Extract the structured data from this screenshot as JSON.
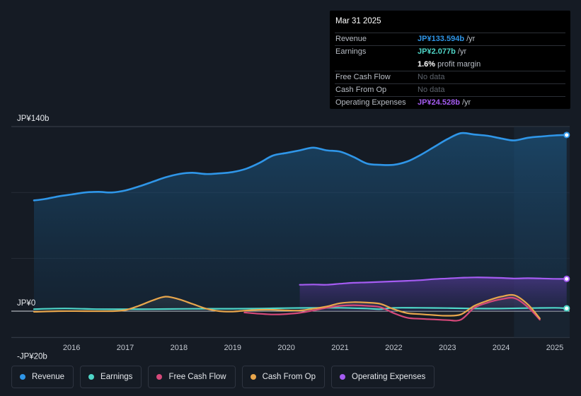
{
  "tooltip": {
    "date": "Mar 31 2025",
    "revenue_label": "Revenue",
    "revenue_value": "JP¥133.594b",
    "revenue_unit": "/yr",
    "earnings_label": "Earnings",
    "earnings_value": "JP¥2.077b",
    "earnings_unit": "/yr",
    "margin_value": "1.6%",
    "margin_label": "profit margin",
    "fcf_label": "Free Cash Flow",
    "fcf_value": "No data",
    "cfo_label": "Cash From Op",
    "cfo_value": "No data",
    "opex_label": "Operating Expenses",
    "opex_value": "JP¥24.528b",
    "opex_unit": "/yr",
    "colors": {
      "revenue": "#2f96e8",
      "earnings": "#4fd6c8",
      "opex": "#a55cf2"
    }
  },
  "legend": [
    {
      "label": "Revenue",
      "color": "#2f96e8"
    },
    {
      "label": "Earnings",
      "color": "#4fd6c8"
    },
    {
      "label": "Free Cash Flow",
      "color": "#d6497a"
    },
    {
      "label": "Cash From Op",
      "color": "#e8a64c"
    },
    {
      "label": "Operating Expenses",
      "color": "#a55cf2"
    }
  ],
  "chart_data": {
    "type": "area",
    "title": "",
    "xlabel": "",
    "ylabel": "",
    "y_tick_labels": [
      "JP¥140b",
      "JP¥0",
      "-JP¥20b"
    ],
    "y_ticks": [
      140,
      0,
      -20
    ],
    "ylim": [
      -20,
      140
    ],
    "xlim": [
      2015.3,
      2025.25
    ],
    "x_tick_labels": [
      "2016",
      "2017",
      "2018",
      "2019",
      "2020",
      "2021",
      "2022",
      "2023",
      "2024",
      "2025"
    ],
    "x_ticks": [
      2016,
      2017,
      2018,
      2019,
      2020,
      2021,
      2022,
      2023,
      2024,
      2025
    ],
    "forecast_start": 2024.24,
    "series": [
      {
        "name": "Revenue",
        "color": "#2f96e8",
        "points": [
          [
            2015.3,
            84
          ],
          [
            2015.5,
            85
          ],
          [
            2015.75,
            87
          ],
          [
            2016.0,
            88.5
          ],
          [
            2016.25,
            90
          ],
          [
            2016.5,
            90.5
          ],
          [
            2016.75,
            90
          ],
          [
            2017.0,
            91.5
          ],
          [
            2017.25,
            94.5
          ],
          [
            2017.5,
            98
          ],
          [
            2017.75,
            101.5
          ],
          [
            2018.0,
            104
          ],
          [
            2018.25,
            105
          ],
          [
            2018.5,
            104
          ],
          [
            2018.75,
            104.5
          ],
          [
            2019.0,
            105.5
          ],
          [
            2019.25,
            108
          ],
          [
            2019.5,
            112.5
          ],
          [
            2019.75,
            118
          ],
          [
            2020.0,
            120
          ],
          [
            2020.25,
            122
          ],
          [
            2020.5,
            124
          ],
          [
            2020.75,
            122
          ],
          [
            2021.0,
            121
          ],
          [
            2021.25,
            117
          ],
          [
            2021.5,
            112
          ],
          [
            2021.75,
            111
          ],
          [
            2022.0,
            111
          ],
          [
            2022.25,
            113.5
          ],
          [
            2022.5,
            118.5
          ],
          [
            2022.75,
            124.5
          ],
          [
            2023.0,
            130.5
          ],
          [
            2023.25,
            135
          ],
          [
            2023.5,
            134
          ],
          [
            2023.75,
            133
          ],
          [
            2024.0,
            131
          ],
          [
            2024.24,
            129.5
          ],
          [
            2024.5,
            131.5
          ],
          [
            2024.75,
            132.5
          ],
          [
            2025.0,
            133.3
          ],
          [
            2025.22,
            133.6
          ]
        ]
      },
      {
        "name": "Earnings",
        "color": "#4fd6c8",
        "points": [
          [
            2015.3,
            1.5
          ],
          [
            2015.75,
            2
          ],
          [
            2016.0,
            2
          ],
          [
            2016.5,
            1.5
          ],
          [
            2017.0,
            1.5
          ],
          [
            2017.5,
            1.5
          ],
          [
            2018.0,
            1.7
          ],
          [
            2018.5,
            1.8
          ],
          [
            2019.0,
            1.8
          ],
          [
            2019.5,
            2
          ],
          [
            2020.0,
            2.3
          ],
          [
            2020.5,
            2.5
          ],
          [
            2021.0,
            2.5
          ],
          [
            2021.5,
            2
          ],
          [
            2021.75,
            1.5
          ],
          [
            2022.0,
            2.5
          ],
          [
            2022.5,
            2.5
          ],
          [
            2023.0,
            2.3
          ],
          [
            2023.5,
            2
          ],
          [
            2024.0,
            2
          ],
          [
            2024.5,
            2.3
          ],
          [
            2025.0,
            2.5
          ],
          [
            2025.22,
            2.1
          ]
        ]
      },
      {
        "name": "Free Cash Flow",
        "color": "#d6497a",
        "points": [
          [
            2019.22,
            -1
          ],
          [
            2019.5,
            -2
          ],
          [
            2019.75,
            -2.5
          ],
          [
            2020.0,
            -2.2
          ],
          [
            2020.25,
            -1.3
          ],
          [
            2020.5,
            0.5
          ],
          [
            2020.75,
            2.5
          ],
          [
            2021.0,
            4
          ],
          [
            2021.25,
            4.5
          ],
          [
            2021.5,
            4
          ],
          [
            2021.75,
            3
          ],
          [
            2022.0,
            -1.5
          ],
          [
            2022.25,
            -5
          ],
          [
            2022.5,
            -5.8
          ],
          [
            2022.75,
            -6.3
          ],
          [
            2023.0,
            -6.8
          ],
          [
            2023.25,
            -6.5
          ],
          [
            2023.5,
            2.5
          ],
          [
            2023.75,
            6.5
          ],
          [
            2024.0,
            9
          ],
          [
            2024.25,
            9.8
          ],
          [
            2024.5,
            3
          ],
          [
            2024.72,
            -6.5
          ]
        ]
      },
      {
        "name": "Cash From Op",
        "color": "#e8a64c",
        "points": [
          [
            2015.3,
            -0.5
          ],
          [
            2015.75,
            0
          ],
          [
            2016.25,
            0
          ],
          [
            2016.75,
            0
          ],
          [
            2017.0,
            0.8
          ],
          [
            2017.25,
            4
          ],
          [
            2017.5,
            8
          ],
          [
            2017.75,
            11
          ],
          [
            2018.0,
            9
          ],
          [
            2018.25,
            5.5
          ],
          [
            2018.5,
            2
          ],
          [
            2018.75,
            0
          ],
          [
            2019.0,
            -0.3
          ],
          [
            2019.25,
            0.5
          ],
          [
            2019.5,
            1
          ],
          [
            2019.75,
            1
          ],
          [
            2020.0,
            0.6
          ],
          [
            2020.25,
            0.5
          ],
          [
            2020.5,
            1.8
          ],
          [
            2020.75,
            3.5
          ],
          [
            2021.0,
            6
          ],
          [
            2021.25,
            6.8
          ],
          [
            2021.5,
            6.5
          ],
          [
            2021.75,
            5.5
          ],
          [
            2022.0,
            1.5
          ],
          [
            2022.25,
            -1.5
          ],
          [
            2022.5,
            -2.3
          ],
          [
            2022.75,
            -3
          ],
          [
            2023.0,
            -3.5
          ],
          [
            2023.25,
            -2.5
          ],
          [
            2023.5,
            4
          ],
          [
            2023.75,
            8
          ],
          [
            2024.0,
            11
          ],
          [
            2024.25,
            12
          ],
          [
            2024.5,
            5
          ],
          [
            2024.72,
            -5.5
          ]
        ]
      },
      {
        "name": "Operating Expenses",
        "color": "#a55cf2",
        "points": [
          [
            2020.25,
            20
          ],
          [
            2020.5,
            20.2
          ],
          [
            2020.75,
            20
          ],
          [
            2021.0,
            20.8
          ],
          [
            2021.25,
            21.5
          ],
          [
            2021.5,
            21.8
          ],
          [
            2021.75,
            22.2
          ],
          [
            2022.0,
            22.6
          ],
          [
            2022.25,
            23
          ],
          [
            2022.5,
            23.5
          ],
          [
            2022.75,
            24.3
          ],
          [
            2023.0,
            24.8
          ],
          [
            2023.25,
            25.3
          ],
          [
            2023.5,
            25.6
          ],
          [
            2023.75,
            25.5
          ],
          [
            2024.0,
            25.2
          ],
          [
            2024.24,
            24.8
          ],
          [
            2024.5,
            25
          ],
          [
            2024.75,
            24.8
          ],
          [
            2025.0,
            24.5
          ],
          [
            2025.22,
            24.5
          ]
        ]
      }
    ]
  }
}
